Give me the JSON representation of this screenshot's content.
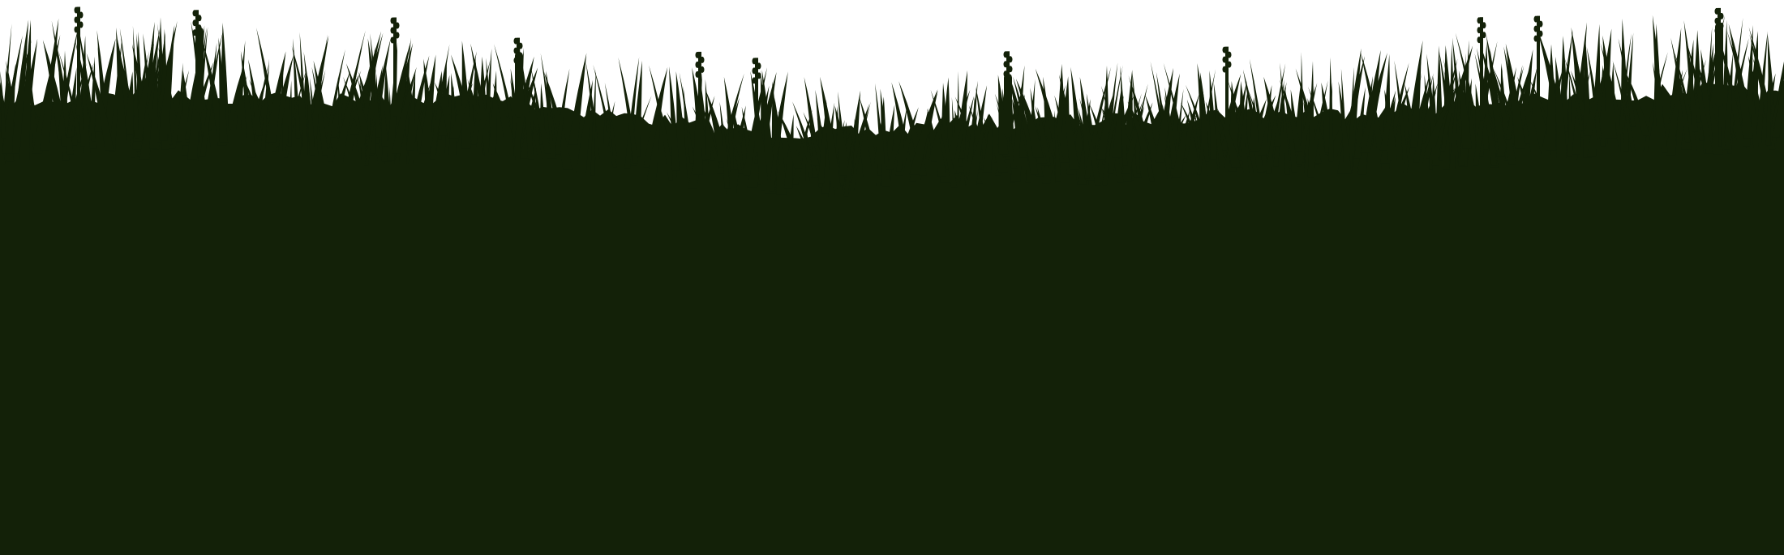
{
  "scene": {
    "subject": "grass-silhouette",
    "colors": {
      "sky": "#ffffff",
      "grass": "#132108"
    }
  }
}
